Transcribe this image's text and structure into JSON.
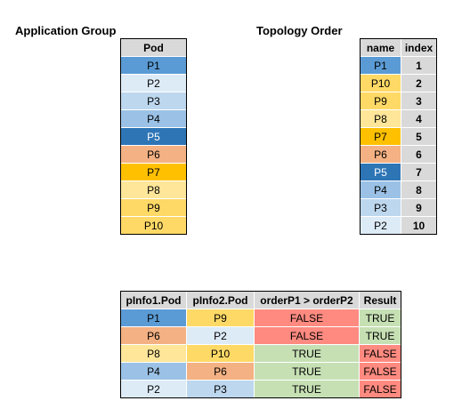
{
  "titles": {
    "app_group": "Application Group",
    "topology_order": "Topology Order"
  },
  "colors": {
    "P1": "#5b9bd5",
    "P2": "#ddebf7",
    "P3": "#bdd7ee",
    "P4": "#9bc2e6",
    "P5": "#2e75b6",
    "P6": "#f4b183",
    "P7": "#ffc000",
    "P8": "#ffe699",
    "P9": "#ffd966",
    "P10": "#ffd966",
    "header": "#d9d9d9",
    "true_bg": "#c6e0b4",
    "false_bg": "#ff8a80"
  },
  "pod_table": {
    "header": "Pod",
    "rows": [
      "P1",
      "P2",
      "P3",
      "P4",
      "P5",
      "P6",
      "P7",
      "P8",
      "P9",
      "P10"
    ]
  },
  "topology_table": {
    "headers": [
      "name",
      "index"
    ],
    "rows": [
      {
        "name": "P1",
        "index": "1"
      },
      {
        "name": "P10",
        "index": "2"
      },
      {
        "name": "P9",
        "index": "3"
      },
      {
        "name": "P8",
        "index": "4"
      },
      {
        "name": "P7",
        "index": "5"
      },
      {
        "name": "P6",
        "index": "6"
      },
      {
        "name": "P5",
        "index": "7"
      },
      {
        "name": "P4",
        "index": "8"
      },
      {
        "name": "P3",
        "index": "9"
      },
      {
        "name": "P2",
        "index": "10"
      }
    ]
  },
  "compare_table": {
    "headers": [
      "pInfo1.Pod",
      "pInfo2.Pod",
      "orderP1 > orderP2",
      "Result"
    ],
    "rows": [
      {
        "p1": "P1",
        "p2": "P9",
        "cmp": "FALSE",
        "result": "TRUE"
      },
      {
        "p1": "P6",
        "p2": "P2",
        "cmp": "FALSE",
        "result": "TRUE"
      },
      {
        "p1": "P8",
        "p2": "P10",
        "cmp": "TRUE",
        "result": "FALSE"
      },
      {
        "p1": "P4",
        "p2": "P6",
        "cmp": "TRUE",
        "result": "FALSE"
      },
      {
        "p1": "P2",
        "p2": "P3",
        "cmp": "TRUE",
        "result": "FALSE"
      }
    ]
  }
}
